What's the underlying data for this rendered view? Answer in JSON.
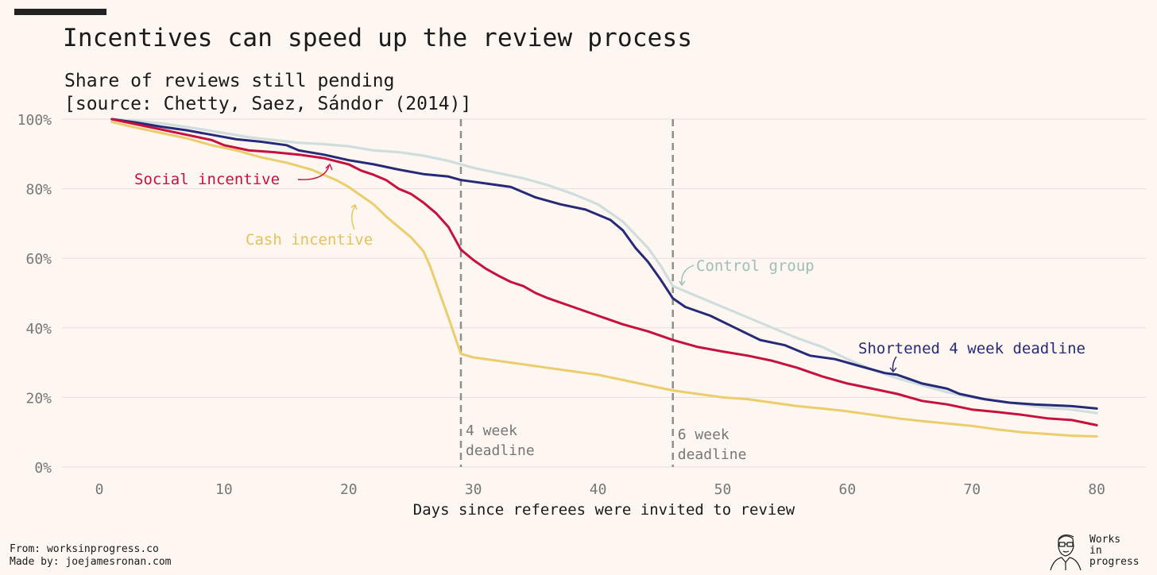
{
  "title": "Incentives can speed up the review process",
  "subtitle_line1": "Share of reviews still pending",
  "subtitle_line2": "[source: Chetty, Saez, Sándor (2014)]",
  "footer": {
    "from": "From: worksinprogress.co",
    "made_by": "Made by: joejamesronan.com"
  },
  "logo": {
    "icon": "portrait-sketch-icon",
    "line1": "Works",
    "line2": "in",
    "line3": "progress"
  },
  "colors": {
    "background": "#fdf6f1",
    "control": "#cfdedd",
    "control_label": "#9dbfb8",
    "shortened": "#262a78",
    "social": "#c8103e",
    "cash": "#eccd6c",
    "vline": "#8f8f8f",
    "grid": "#e6dfdb",
    "tick": "#777777"
  },
  "chart_data": {
    "type": "line",
    "xlabel": "Days since referees were invited to review",
    "xlim": [
      -3,
      83
    ],
    "ylim": [
      0,
      100
    ],
    "xticks": [
      0,
      10,
      20,
      30,
      40,
      50,
      60,
      70,
      80
    ],
    "xtick_labels": [
      "0",
      "10",
      "20",
      "30",
      "40",
      "50",
      "60",
      "70",
      "80"
    ],
    "yticks": [
      0,
      20,
      40,
      60,
      80,
      100
    ],
    "ytick_labels": [
      "0%",
      "20%",
      "40%",
      "60%",
      "80%",
      "100%"
    ],
    "grid": "horizontal",
    "legend": "inline labels",
    "series": [
      {
        "name": "Control group",
        "key": "control",
        "points": [
          [
            1,
            100
          ],
          [
            3,
            99.5
          ],
          [
            5,
            98.8
          ],
          [
            8,
            97.2
          ],
          [
            10,
            96
          ],
          [
            12,
            94.8
          ],
          [
            14,
            94
          ],
          [
            16,
            93.2
          ],
          [
            18,
            92.8
          ],
          [
            20,
            92.2
          ],
          [
            22,
            91
          ],
          [
            24,
            90.5
          ],
          [
            26,
            89.5
          ],
          [
            28,
            88
          ],
          [
            30,
            86
          ],
          [
            32,
            84.5
          ],
          [
            34,
            83
          ],
          [
            36,
            81
          ],
          [
            38,
            78.5
          ],
          [
            40,
            75.5
          ],
          [
            42,
            70.5
          ],
          [
            44,
            63
          ],
          [
            45,
            58
          ],
          [
            46,
            52
          ],
          [
            48,
            49
          ],
          [
            50,
            46
          ],
          [
            52,
            43
          ],
          [
            54,
            40
          ],
          [
            56,
            37
          ],
          [
            58,
            34.5
          ],
          [
            60,
            31
          ],
          [
            62,
            28
          ],
          [
            64,
            25.5
          ],
          [
            66,
            23.5
          ],
          [
            68,
            21.5
          ],
          [
            70,
            20
          ],
          [
            72,
            19
          ],
          [
            74,
            18
          ],
          [
            76,
            17
          ],
          [
            78,
            16.5
          ],
          [
            80,
            15.5
          ]
        ]
      },
      {
        "name": "Shortened 4 week deadline",
        "key": "shortened",
        "points": [
          [
            1,
            100
          ],
          [
            3,
            99
          ],
          [
            5,
            97.8
          ],
          [
            7,
            96.8
          ],
          [
            9,
            95.5
          ],
          [
            11,
            94.2
          ],
          [
            13,
            93.5
          ],
          [
            15,
            92.5
          ],
          [
            16,
            91
          ],
          [
            18,
            89.8
          ],
          [
            20,
            88.2
          ],
          [
            22,
            87
          ],
          [
            24,
            85.5
          ],
          [
            26,
            84.2
          ],
          [
            28,
            83.5
          ],
          [
            29,
            82.5
          ],
          [
            31,
            81.5
          ],
          [
            33,
            80.5
          ],
          [
            35,
            77.5
          ],
          [
            37,
            75.5
          ],
          [
            39,
            74
          ],
          [
            41,
            71
          ],
          [
            42,
            68
          ],
          [
            43,
            63
          ],
          [
            44,
            59
          ],
          [
            45,
            54
          ],
          [
            46,
            48.5
          ],
          [
            47,
            46
          ],
          [
            49,
            43.5
          ],
          [
            51,
            40
          ],
          [
            53,
            36.5
          ],
          [
            55,
            35
          ],
          [
            57,
            32
          ],
          [
            59,
            31
          ],
          [
            61,
            29
          ],
          [
            63,
            27
          ],
          [
            64,
            26.5
          ],
          [
            66,
            24
          ],
          [
            68,
            22.5
          ],
          [
            69,
            21
          ],
          [
            71,
            19.5
          ],
          [
            73,
            18.5
          ],
          [
            75,
            18
          ],
          [
            78,
            17.5
          ],
          [
            80,
            16.8
          ]
        ]
      },
      {
        "name": "Social incentive",
        "key": "social",
        "points": [
          [
            1,
            100
          ],
          [
            3,
            98.5
          ],
          [
            5,
            97
          ],
          [
            7,
            95.5
          ],
          [
            9,
            94
          ],
          [
            10,
            92.5
          ],
          [
            12,
            91
          ],
          [
            14,
            90.5
          ],
          [
            16,
            89.8
          ],
          [
            18,
            88.8
          ],
          [
            20,
            87
          ],
          [
            21,
            85.2
          ],
          [
            22,
            84
          ],
          [
            23,
            82.5
          ],
          [
            24,
            80
          ],
          [
            25,
            78.5
          ],
          [
            26,
            76
          ],
          [
            27,
            73
          ],
          [
            28,
            69
          ],
          [
            29,
            62.5
          ],
          [
            30,
            59.5
          ],
          [
            31,
            57
          ],
          [
            32,
            55
          ],
          [
            33,
            53.2
          ],
          [
            34,
            52
          ],
          [
            35,
            50
          ],
          [
            36,
            48.5
          ],
          [
            38,
            46
          ],
          [
            40,
            43.5
          ],
          [
            42,
            41
          ],
          [
            44,
            39
          ],
          [
            46,
            36.5
          ],
          [
            48,
            34.5
          ],
          [
            50,
            33.2
          ],
          [
            52,
            32
          ],
          [
            54,
            30.5
          ],
          [
            56,
            28.5
          ],
          [
            58,
            26
          ],
          [
            60,
            24
          ],
          [
            62,
            22.5
          ],
          [
            64,
            21
          ],
          [
            66,
            19
          ],
          [
            68,
            18
          ],
          [
            70,
            16.5
          ],
          [
            72,
            15.8
          ],
          [
            74,
            15
          ],
          [
            76,
            14
          ],
          [
            78,
            13.5
          ],
          [
            80,
            12
          ]
        ]
      },
      {
        "name": "Cash incentive",
        "key": "cash",
        "points": [
          [
            1,
            99.2
          ],
          [
            3,
            97.5
          ],
          [
            5,
            96
          ],
          [
            7,
            94.5
          ],
          [
            9,
            92.5
          ],
          [
            11,
            91
          ],
          [
            13,
            89
          ],
          [
            15,
            87.5
          ],
          [
            17,
            85.5
          ],
          [
            19,
            82.5
          ],
          [
            20,
            80.5
          ],
          [
            21,
            78
          ],
          [
            22,
            75.5
          ],
          [
            23,
            72
          ],
          [
            24,
            69
          ],
          [
            25,
            66
          ],
          [
            26,
            62
          ],
          [
            26.5,
            58
          ],
          [
            27,
            53
          ],
          [
            28,
            43
          ],
          [
            29,
            32.5
          ],
          [
            30,
            31.5
          ],
          [
            32,
            30.5
          ],
          [
            34,
            29.5
          ],
          [
            36,
            28.5
          ],
          [
            38,
            27.5
          ],
          [
            40,
            26.5
          ],
          [
            42,
            25
          ],
          [
            44,
            23.5
          ],
          [
            46,
            22
          ],
          [
            48,
            21
          ],
          [
            50,
            20
          ],
          [
            52,
            19.5
          ],
          [
            54,
            18.5
          ],
          [
            56,
            17.5
          ],
          [
            58,
            16.8
          ],
          [
            60,
            16
          ],
          [
            62,
            15
          ],
          [
            64,
            14
          ],
          [
            66,
            13.2
          ],
          [
            68,
            12.5
          ],
          [
            70,
            11.8
          ],
          [
            72,
            10.8
          ],
          [
            74,
            10
          ],
          [
            76,
            9.5
          ],
          [
            78,
            9
          ],
          [
            80,
            8.8
          ]
        ]
      }
    ],
    "labels": {
      "control": "Control group",
      "shortened": "Shortened 4 week deadline",
      "social": "Social incentive",
      "cash": "Cash incentive"
    },
    "vlines": [
      {
        "x": 29,
        "line1": "4 week",
        "line2": "deadline"
      },
      {
        "x": 46,
        "line1": "6 week",
        "line2": "deadline"
      }
    ]
  }
}
